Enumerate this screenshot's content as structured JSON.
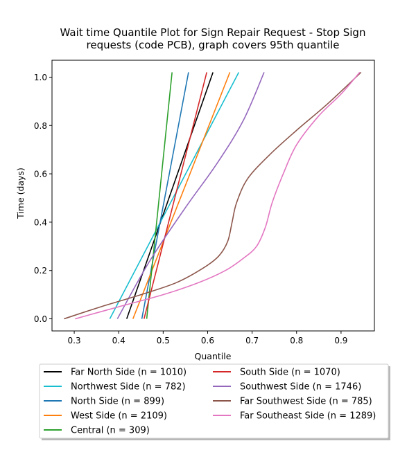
{
  "chart_data": {
    "type": "line",
    "title_lines": [
      "Wait time Quantile Plot for Sign Repair Request - Stop Sign",
      "requests (code PCB), graph covers 95th quantile"
    ],
    "xlabel": "Quantile",
    "ylabel": "Time (days)",
    "xlim": [
      0.25,
      0.975
    ],
    "ylim": [
      -0.05,
      1.07
    ],
    "xticks": [
      0.3,
      0.4,
      0.5,
      0.6,
      0.7,
      0.8,
      0.9
    ],
    "yticks": [
      0.0,
      0.2,
      0.4,
      0.6,
      0.8,
      1.0
    ],
    "xtick_labels": [
      "0.3",
      "0.4",
      "0.5",
      "0.6",
      "0.7",
      "0.8",
      "0.9"
    ],
    "ytick_labels": [
      "0.0",
      "0.2",
      "0.4",
      "0.6",
      "0.8",
      "1.0"
    ],
    "grid": false,
    "legend_position": "below",
    "series": [
      {
        "name": "Far North Side (n = 1010)",
        "color": "#000000",
        "points": [
          [
            0.418,
            0.0
          ],
          [
            0.612,
            1.02
          ]
        ]
      },
      {
        "name": "Northwest Side (n = 782)",
        "color": "#17becf",
        "points": [
          [
            0.38,
            0.0
          ],
          [
            0.67,
            1.02
          ]
        ]
      },
      {
        "name": "North Side (n = 899)",
        "color": "#1f77b4",
        "points": [
          [
            0.452,
            0.0
          ],
          [
            0.557,
            1.02
          ]
        ]
      },
      {
        "name": "West Side (n = 2109)",
        "color": "#ff7f0e",
        "points": [
          [
            0.432,
            0.0
          ],
          [
            0.65,
            1.02
          ]
        ]
      },
      {
        "name": "Central (n = 309)",
        "color": "#2ca02c",
        "points": [
          [
            0.463,
            0.0
          ],
          [
            0.52,
            1.02
          ]
        ]
      },
      {
        "name": "South Side (n = 1070)",
        "color": "#d62728",
        "points": [
          [
            0.457,
            0.0
          ],
          [
            0.598,
            1.02
          ]
        ]
      },
      {
        "name": "Southwest Side (n = 1746)",
        "color": "#9467bd",
        "points": [
          [
            0.397,
            0.0
          ],
          [
            0.47,
            0.24
          ],
          [
            0.55,
            0.46
          ],
          [
            0.62,
            0.64
          ],
          [
            0.68,
            0.82
          ],
          [
            0.727,
            1.02
          ]
        ]
      },
      {
        "name": "Far Southwest Side (n = 785)",
        "color": "#8c564b",
        "points": [
          [
            0.277,
            0.0
          ],
          [
            0.36,
            0.05
          ],
          [
            0.45,
            0.1
          ],
          [
            0.53,
            0.15
          ],
          [
            0.59,
            0.21
          ],
          [
            0.625,
            0.26
          ],
          [
            0.645,
            0.32
          ],
          [
            0.655,
            0.4
          ],
          [
            0.665,
            0.48
          ],
          [
            0.69,
            0.58
          ],
          [
            0.74,
            0.68
          ],
          [
            0.8,
            0.78
          ],
          [
            0.87,
            0.89
          ],
          [
            0.945,
            1.02
          ]
        ]
      },
      {
        "name": "Far Southeast Side (n = 1289)",
        "color": "#e377c2",
        "points": [
          [
            0.302,
            0.0
          ],
          [
            0.4,
            0.05
          ],
          [
            0.5,
            0.1
          ],
          [
            0.58,
            0.15
          ],
          [
            0.64,
            0.2
          ],
          [
            0.68,
            0.25
          ],
          [
            0.71,
            0.3
          ],
          [
            0.73,
            0.38
          ],
          [
            0.745,
            0.48
          ],
          [
            0.77,
            0.6
          ],
          [
            0.8,
            0.72
          ],
          [
            0.85,
            0.84
          ],
          [
            0.9,
            0.93
          ],
          [
            0.942,
            1.02
          ]
        ]
      }
    ]
  }
}
